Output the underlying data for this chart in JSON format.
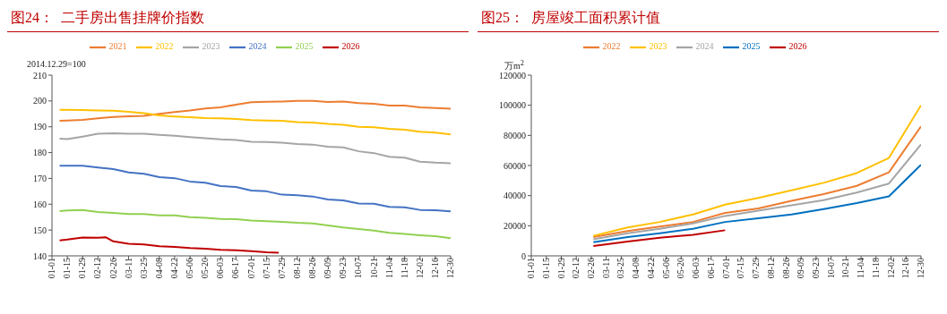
{
  "chart_data": [
    {
      "type": "line",
      "title": "图24：  二手房出售挂牌价指数",
      "ylabel": "2014.12.29=100",
      "legend": "top",
      "grid": false,
      "marker": "none",
      "line_style": "solid",
      "x": [
        "--01-08",
        "--01-15",
        "--01-29",
        "--02-12",
        "--02-26",
        "--03-11",
        "--03-25",
        "--04-08",
        "--04-22",
        "--05-06",
        "--05-20",
        "--06-03",
        "--06-17",
        "--07-01",
        "--07-15",
        "--07-29",
        "--08-12",
        "--08-26",
        "--09-09",
        "--09-23",
        "--10-07",
        "--10-21",
        "--11-04",
        "--11-18",
        "--12-02",
        "--12-16",
        "--12-30"
      ],
      "xlim": [
        "--01-01",
        "--12-30"
      ],
      "xticks": [
        {
          "value": "--01-01",
          "label": "01-01"
        },
        {
          "value": "--01-15",
          "label": "01-15"
        },
        {
          "value": "--01-29",
          "label": "01-29"
        },
        {
          "value": "--02-12",
          "label": "02-12"
        },
        {
          "value": "--02-26",
          "label": "02-26"
        },
        {
          "value": "--03-11",
          "label": "03-11"
        },
        {
          "value": "--03-25",
          "label": "03-25"
        },
        {
          "value": "--04-08",
          "label": "04-08"
        },
        {
          "value": "--04-22",
          "label": "04-22"
        },
        {
          "value": "--05-06",
          "label": "05-06"
        },
        {
          "value": "--05-20",
          "label": "05-20"
        },
        {
          "value": "--06-03",
          "label": "06-03"
        },
        {
          "value": "--06-17",
          "label": "06-17"
        },
        {
          "value": "--07-01",
          "label": "07-01"
        },
        {
          "value": "--07-15",
          "label": "07-15"
        },
        {
          "value": "--07-29",
          "label": "07-29"
        },
        {
          "value": "--08-12",
          "label": "08-12"
        },
        {
          "value": "--08-26",
          "label": "08-26"
        },
        {
          "value": "--09-09",
          "label": "09-09"
        },
        {
          "value": "--09-23",
          "label": "09-23"
        },
        {
          "value": "--10-07",
          "label": "10-07"
        },
        {
          "value": "--10-21",
          "label": "10-21"
        },
        {
          "value": "--11-04",
          "label": "11-04"
        },
        {
          "value": "--11-18",
          "label": "11-18"
        },
        {
          "value": "--12-02",
          "label": "12-02"
        },
        {
          "value": "--12-16",
          "label": "12-16"
        },
        {
          "value": "--12-30",
          "label": "12-30"
        }
      ],
      "ylim": [
        140,
        210
      ],
      "yticks": [
        140,
        150,
        160,
        170,
        180,
        190,
        200,
        210
      ],
      "series": [
        {
          "name": "2021",
          "color": "#ed7d31",
          "values": [
            192.3,
            192.4,
            192.7,
            193.3,
            193.8,
            194.1,
            194.2,
            195.0,
            195.7,
            196.3,
            197.1,
            197.5,
            198.6,
            199.5,
            199.7,
            199.8,
            200.0,
            200.0,
            199.6,
            199.8,
            199.2,
            198.9,
            198.2,
            198.2,
            197.5,
            197.3,
            197.0
          ]
        },
        {
          "name": "2022",
          "color": "#ffc000",
          "values": [
            196.6,
            196.6,
            196.5,
            196.3,
            196.2,
            195.8,
            195.3,
            194.4,
            194.0,
            193.7,
            193.4,
            193.3,
            193.0,
            192.6,
            192.4,
            192.3,
            191.8,
            191.6,
            191.1,
            190.8,
            190.0,
            189.8,
            189.2,
            188.9,
            188.1,
            187.7,
            187.0
          ]
        },
        {
          "name": "2023",
          "color": "#a5a5a5",
          "values": [
            185.4,
            185.2,
            186.2,
            187.3,
            187.5,
            187.3,
            187.3,
            186.9,
            186.5,
            186.0,
            185.6,
            185.1,
            184.9,
            184.2,
            184.1,
            183.8,
            183.3,
            183.1,
            182.3,
            182.0,
            180.5,
            179.8,
            178.4,
            178.0,
            176.5,
            176.1,
            175.9
          ]
        },
        {
          "name": "2024",
          "color": "#4472c4",
          "values": [
            174.9,
            174.9,
            174.9,
            174.2,
            173.6,
            172.3,
            171.8,
            170.5,
            170.1,
            168.8,
            168.3,
            167.0,
            166.7,
            165.3,
            165.0,
            163.7,
            163.5,
            163.0,
            161.8,
            161.5,
            160.3,
            160.2,
            159.0,
            158.8,
            157.8,
            157.7,
            157.2
          ]
        },
        {
          "name": "2025",
          "color": "#92d050",
          "values": [
            157.3,
            157.6,
            157.8,
            157.0,
            156.6,
            156.2,
            156.2,
            155.7,
            155.7,
            155.0,
            154.7,
            154.3,
            154.2,
            153.7,
            153.4,
            153.2,
            152.8,
            152.6,
            151.8,
            151.0,
            150.4,
            149.8,
            148.9,
            148.5,
            148.0,
            147.6,
            146.8
          ]
        },
        {
          "name": "2026",
          "color": "#c00000",
          "x": [
            "--01-08",
            "--01-15",
            "--01-29",
            "--02-12",
            "--02-19",
            "--02-26",
            "--03-11",
            "--03-25",
            "--04-08",
            "--04-22",
            "--05-06",
            "--05-20",
            "--06-03",
            "--06-17",
            "--07-01",
            "--07-15",
            "--07-26"
          ],
          "values": [
            146.0,
            146.3,
            147.1,
            147.0,
            147.2,
            145.6,
            144.7,
            144.4,
            143.7,
            143.5,
            143.0,
            142.8,
            142.3,
            142.2,
            141.8,
            141.4,
            141.2
          ]
        }
      ]
    },
    {
      "type": "line",
      "title": "图25：  房屋竣工面积累计值",
      "ylabel": "万m$^{2}$",
      "legend": "top",
      "grid": false,
      "marker": "none",
      "line_style": "solid",
      "x": [
        "--02-28",
        "--03-31",
        "--04-30",
        "--05-31",
        "--06-30",
        "--07-31",
        "--08-31",
        "--09-30",
        "--10-31",
        "--11-30",
        "--12-30"
      ],
      "xlim": [
        "--01-01",
        "--12-30"
      ],
      "xticks": [
        {
          "value": "--01-01",
          "label": "01-01"
        },
        {
          "value": "--01-15",
          "label": "01-15"
        },
        {
          "value": "--01-29",
          "label": "01-29"
        },
        {
          "value": "--02-12",
          "label": "02-12"
        },
        {
          "value": "--02-26",
          "label": "02-26"
        },
        {
          "value": "--03-11",
          "label": "03-11"
        },
        {
          "value": "--03-25",
          "label": "03-25"
        },
        {
          "value": "--04-08",
          "label": "04-08"
        },
        {
          "value": "--04-22",
          "label": "04-22"
        },
        {
          "value": "--05-06",
          "label": "05-06"
        },
        {
          "value": "--05-20",
          "label": "05-20"
        },
        {
          "value": "--06-03",
          "label": "06-03"
        },
        {
          "value": "--06-17",
          "label": "06-17"
        },
        {
          "value": "--07-01",
          "label": "07-01"
        },
        {
          "value": "--07-15",
          "label": "07-15"
        },
        {
          "value": "--07-29",
          "label": "07-29"
        },
        {
          "value": "--08-12",
          "label": "08-12"
        },
        {
          "value": "--08-26",
          "label": "08-26"
        },
        {
          "value": "--09-09",
          "label": "09-09"
        },
        {
          "value": "--09-23",
          "label": "09-23"
        },
        {
          "value": "--10-07",
          "label": "10-07"
        },
        {
          "value": "--10-21",
          "label": "10-21"
        },
        {
          "value": "--11-04",
          "label": "11-04"
        },
        {
          "value": "--11-18",
          "label": "11-18"
        },
        {
          "value": "--12-02",
          "label": "12-02"
        },
        {
          "value": "--12-16",
          "label": "12-16"
        },
        {
          "value": "--12-30",
          "label": "12-30"
        }
      ],
      "ylim": [
        0,
        120000
      ],
      "yticks": [
        0,
        20000,
        40000,
        60000,
        80000,
        100000,
        120000
      ],
      "series": [
        {
          "name": "2022",
          "color": "#ed7d31",
          "values": [
            12500,
            16500,
            19500,
            22500,
            28500,
            31500,
            36500,
            41000,
            46500,
            55500,
            86000
          ]
        },
        {
          "name": "2023",
          "color": "#ffc000",
          "values": [
            13300,
            18900,
            22500,
            27500,
            34000,
            38500,
            43500,
            48500,
            55000,
            65000,
            100000
          ]
        },
        {
          "name": "2024",
          "color": "#a5a5a5",
          "values": [
            11000,
            15000,
            18000,
            21500,
            26500,
            30000,
            33500,
            37000,
            42000,
            48000,
            74000
          ]
        },
        {
          "name": "2025",
          "color": "#0070c0",
          "values": [
            9000,
            12500,
            15000,
            18000,
            22500,
            25000,
            27500,
            31000,
            35000,
            39500,
            60500
          ]
        },
        {
          "name": "2026",
          "color": "#c00000",
          "x": [
            "--02-28",
            "--03-31",
            "--04-30",
            "--05-31",
            "--06-30"
          ],
          "values": [
            6500,
            9500,
            12000,
            14000,
            17000
          ]
        }
      ]
    }
  ]
}
